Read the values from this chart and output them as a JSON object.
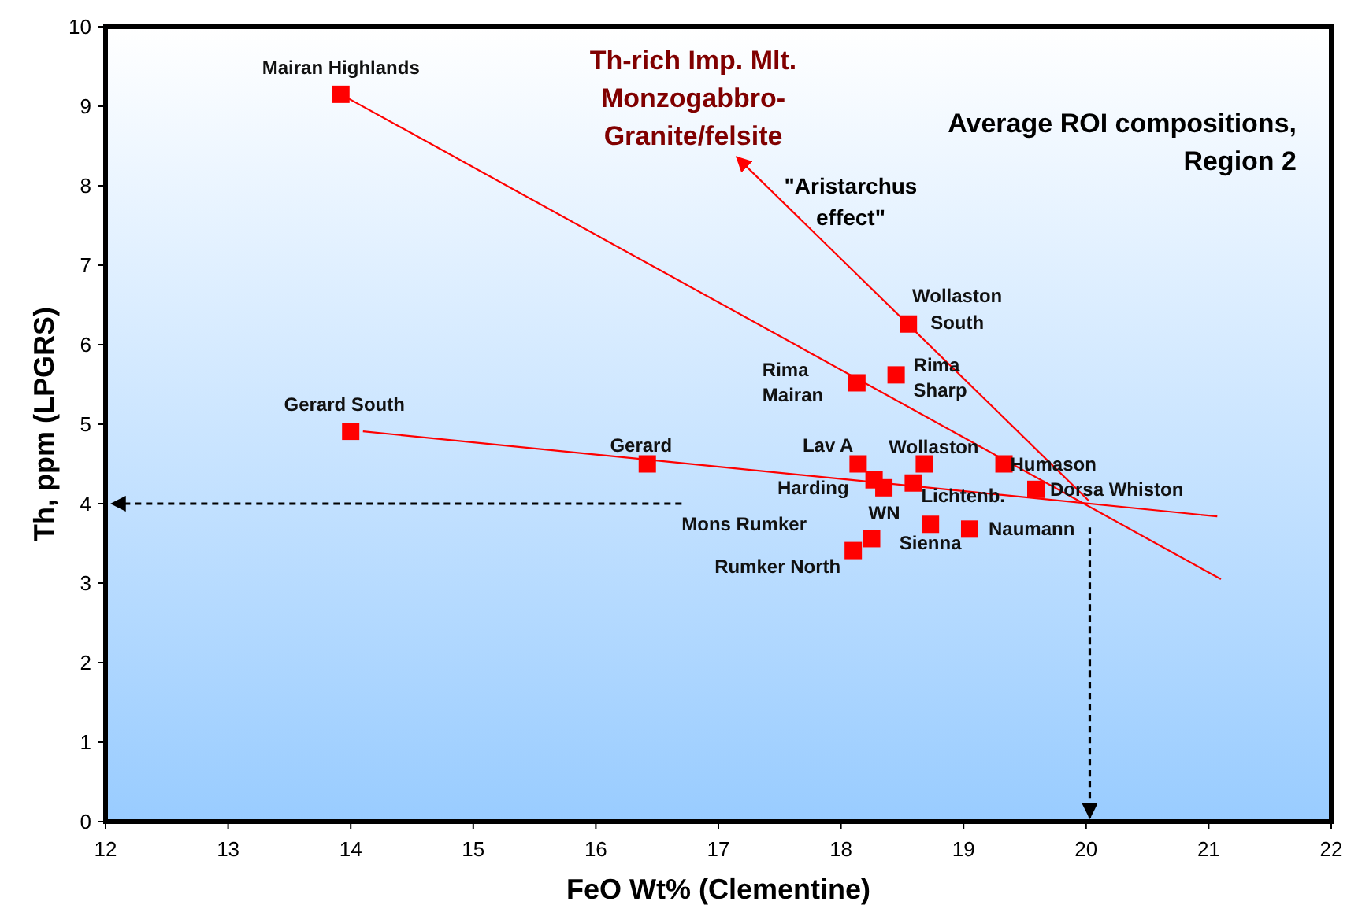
{
  "chart_data": {
    "type": "scatter",
    "title": "Average ROI compositions,\nRegion 2",
    "xlabel": "FeO Wt% (Clementine)",
    "ylabel": "Th, ppm (LPGRS)",
    "xlim": [
      12,
      22
    ],
    "ylim": [
      0,
      10
    ],
    "xticks": [
      12,
      13,
      14,
      15,
      16,
      17,
      18,
      19,
      20,
      21,
      22
    ],
    "yticks": [
      0,
      1,
      2,
      3,
      4,
      5,
      6,
      7,
      8,
      9,
      10
    ],
    "grid": false,
    "series": [
      {
        "marker": "square",
        "color": "#ff0000",
        "x": [
          13.92,
          14.0,
          16.42,
          18.13,
          18.45,
          18.55,
          18.14,
          18.27,
          18.68,
          18.59,
          19.33,
          19.59,
          18.73,
          19.05,
          18.35,
          18.25,
          18.1
        ],
        "values": [
          9.15,
          4.91,
          4.5,
          5.52,
          5.62,
          6.26,
          4.5,
          4.3,
          4.5,
          4.26,
          4.5,
          4.18,
          3.74,
          3.68,
          4.2,
          3.56,
          3.41
        ]
      },
      {
        "type": "line",
        "marker": "none",
        "line_style": "solid",
        "color": "#ff0000",
        "x": [
          13.92,
          21.1
        ],
        "values": [
          9.15,
          3.05
        ]
      },
      {
        "type": "line",
        "marker": "none",
        "line_style": "solid",
        "color": "#ff0000",
        "x": [
          14.1,
          21.07
        ],
        "values": [
          4.91,
          3.84
        ]
      },
      {
        "type": "line",
        "marker": "none",
        "line_style": "solid",
        "color": "#ff0000",
        "x": [
          20.02,
          17.15
        ],
        "values": [
          4.04,
          8.36
        ]
      },
      {
        "type": "line",
        "marker": "none",
        "line_style": "dashed",
        "color": "#000000",
        "x": [
          16.7,
          12.05
        ],
        "values": [
          4,
          4
        ]
      },
      {
        "type": "line",
        "marker": "none",
        "line_style": "dashed",
        "color": "#000000",
        "x": [
          20.03,
          20.03
        ],
        "values": [
          3.7,
          0.05
        ]
      }
    ],
    "annotations": [
      {
        "text": "Mairan Highlands",
        "x": 13.92,
        "y": 9.15
      },
      {
        "text": "Gerard South",
        "x": 14.0,
        "y": 4.91
      },
      {
        "text": "Gerard",
        "x": 16.42,
        "y": 4.5
      },
      {
        "text": "Rima\nMairan",
        "x": 18.13,
        "y": 5.52
      },
      {
        "text": "Rima\nSharp",
        "x": 18.45,
        "y": 5.62
      },
      {
        "text": "Wollaston\nSouth",
        "x": 18.55,
        "y": 6.26
      },
      {
        "text": "Lav A",
        "x": 18.14,
        "y": 4.5
      },
      {
        "text": "Harding",
        "x": 18.27,
        "y": 4.3
      },
      {
        "text": "Wollaston",
        "x": 18.68,
        "y": 4.5
      },
      {
        "text": "Lichtenb.",
        "x": 18.59,
        "y": 4.26
      },
      {
        "text": "Humason",
        "x": 19.33,
        "y": 4.5
      },
      {
        "text": "Dorsa Whiston",
        "x": 19.59,
        "y": 4.18
      },
      {
        "text": "Sienna",
        "x": 18.73,
        "y": 3.74
      },
      {
        "text": "Naumann",
        "x": 19.05,
        "y": 3.68
      },
      {
        "text": "WN",
        "x": 18.25,
        "y": 3.56
      },
      {
        "text": "Rumker North",
        "x": 18.1,
        "y": 3.41
      },
      "Mons Rumker",
      "Th-rich Imp. Mlt.\nMonzogabbro-\nGranite/felsite",
      "\"Aristarchus\neffect\""
    ]
  }
}
